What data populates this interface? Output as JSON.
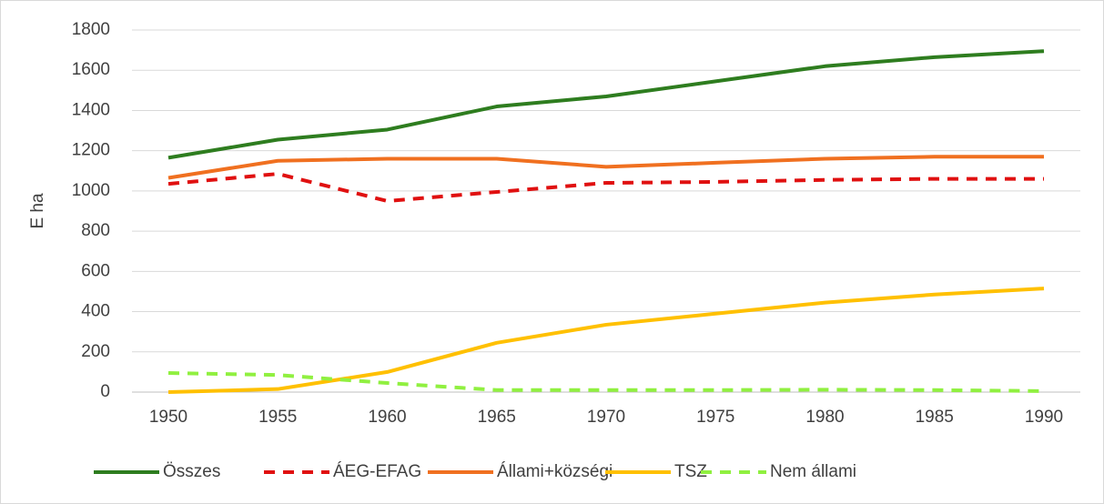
{
  "chart_data": {
    "type": "line",
    "ylabel": "E ha",
    "categories": [
      "1950",
      "1955",
      "1960",
      "1965",
      "1970",
      "1975",
      "1980",
      "1985",
      "1990"
    ],
    "ylim": [
      0,
      1800
    ],
    "yticks": [
      0,
      200,
      400,
      600,
      800,
      1000,
      1200,
      1400,
      1600,
      1800
    ],
    "grid": true,
    "legend": "bottom",
    "series": [
      {
        "name": "Összes",
        "color": "#2e7d1f",
        "dashed": false,
        "values": [
          1165,
          1255,
          1305,
          1420,
          1470,
          1545,
          1620,
          1665,
          1695
        ]
      },
      {
        "name": "ÁEG-EFAG",
        "color": "#e01010",
        "dashed": true,
        "values": [
          1035,
          1085,
          950,
          995,
          1040,
          1045,
          1055,
          1060,
          1060
        ]
      },
      {
        "name": "Állami+községi",
        "color": "#f07020",
        "dashed": false,
        "values": [
          1065,
          1150,
          1160,
          1160,
          1120,
          1140,
          1160,
          1170,
          1170
        ]
      },
      {
        "name": "TSZ",
        "color": "#ffc000",
        "dashed": false,
        "values": [
          0,
          15,
          100,
          245,
          335,
          390,
          445,
          485,
          515
        ]
      },
      {
        "name": "Nem állami",
        "color": "#90f040",
        "dashed": true,
        "values": [
          95,
          85,
          45,
          10,
          10,
          10,
          12,
          10,
          5
        ]
      }
    ]
  }
}
